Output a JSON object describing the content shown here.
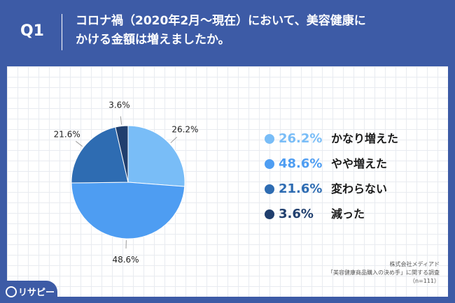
{
  "header": {
    "question": "Q1",
    "title_line1": "コロナ禍（2020年2月〜現在）において、美容健康に",
    "title_line2": "かける金額は増えましたか。"
  },
  "chart_data": {
    "type": "pie",
    "slices": [
      {
        "label": "かなり増えた",
        "value": 26.2,
        "display": "26.2%",
        "color": "#79bdf7"
      },
      {
        "label": "やや増えた",
        "value": 48.6,
        "display": "48.6%",
        "color": "#4e9df2"
      },
      {
        "label": "変わらない",
        "value": 21.6,
        "display": "21.6%",
        "color": "#2e6cb2"
      },
      {
        "label": "減った",
        "value": 3.6,
        "display": "3.6%",
        "color": "#203f6e"
      }
    ]
  },
  "source": {
    "line1": "株式会社メディアド",
    "line2": "「美容健康商品購入の決め手」に関する調査",
    "line3": "（n=111）"
  },
  "logo": {
    "text": "リサピー"
  },
  "colors": {
    "background": "#3d5ba6",
    "panel": "#ffffff"
  }
}
